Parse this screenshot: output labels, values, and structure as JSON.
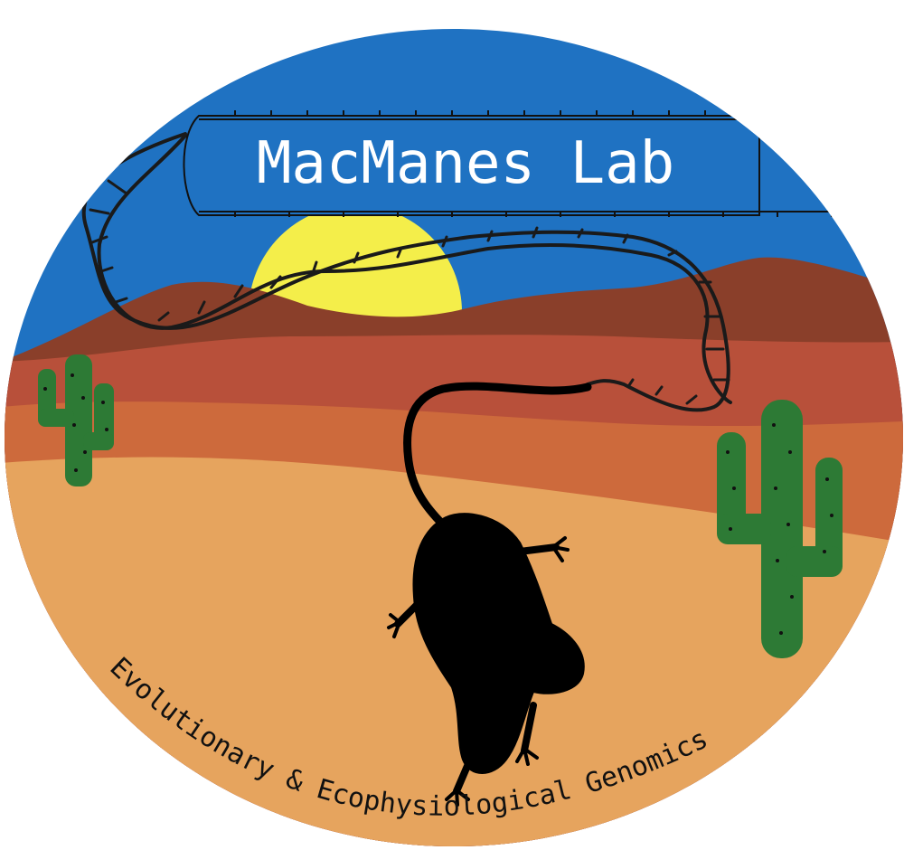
{
  "logo": {
    "title": "MacManes Lab",
    "subtitle": "Evolutionary & Ecophysiological  Genomics"
  },
  "colors": {
    "sky": "#1f72c2",
    "sun": "#f4ee4a",
    "far_ridge": "#8a3f2a",
    "mid_ridge": "#b8503a",
    "near_ridge": "#cd6a3c",
    "sand": "#e6a45e",
    "cactus": "#2d7a35",
    "banner": "#1f72c2",
    "dna": "#1a1a1a",
    "mouse": "#000000"
  },
  "icons": [
    "dna-helix-icon",
    "cactus-icon",
    "mouse-silhouette-icon",
    "sun-icon"
  ]
}
